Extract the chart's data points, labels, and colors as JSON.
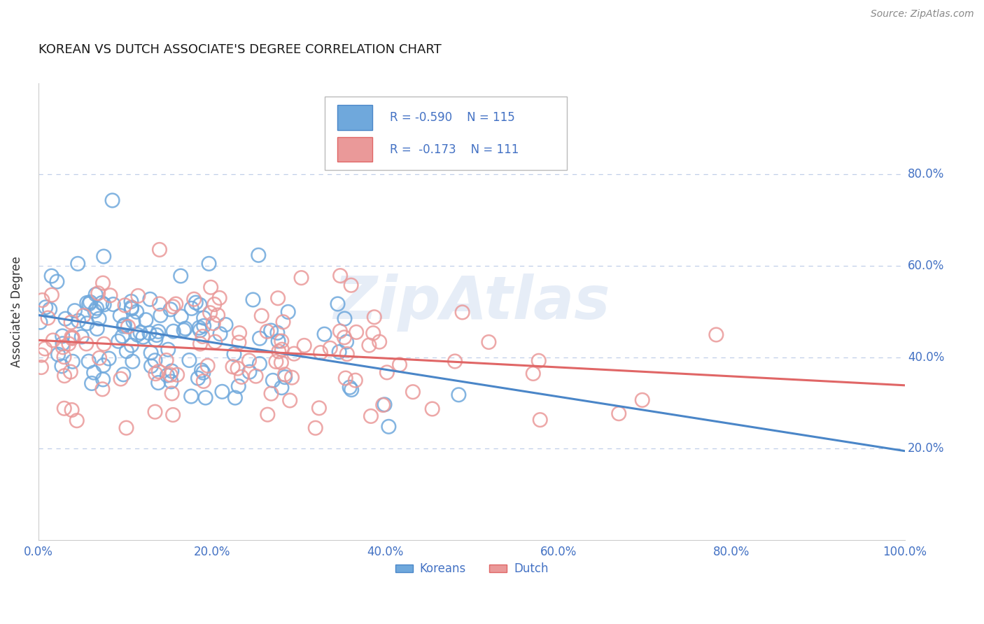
{
  "title": "KOREAN VS DUTCH ASSOCIATE'S DEGREE CORRELATION CHART",
  "source_text": "Source: ZipAtlas.com",
  "ylabel": "Associate's Degree",
  "watermark": "ZipAtlas",
  "xlim": [
    0.0,
    1.0
  ],
  "ylim": [
    0.0,
    1.0
  ],
  "ytick_vals": [
    0.2,
    0.4,
    0.6,
    0.8
  ],
  "xtick_vals": [
    0.0,
    0.2,
    0.4,
    0.6,
    0.8,
    1.0
  ],
  "korean_color": "#6fa8dc",
  "dutch_color": "#ea9999",
  "korean_line_color": "#4a86c8",
  "dutch_line_color": "#e06666",
  "korean_R": -0.59,
  "korean_N": 115,
  "dutch_R": -0.173,
  "dutch_N": 111,
  "tick_label_color": "#4472c4",
  "background_color": "#ffffff",
  "grid_color": "#c0cfe8",
  "legend_label_korean": "Koreans",
  "legend_label_dutch": "Dutch",
  "korean_trend_x": [
    0.0,
    1.0
  ],
  "korean_trend_y": [
    0.472,
    0.265
  ],
  "dutch_trend_x": [
    0.0,
    1.0
  ],
  "dutch_trend_y": [
    0.432,
    0.352
  ]
}
